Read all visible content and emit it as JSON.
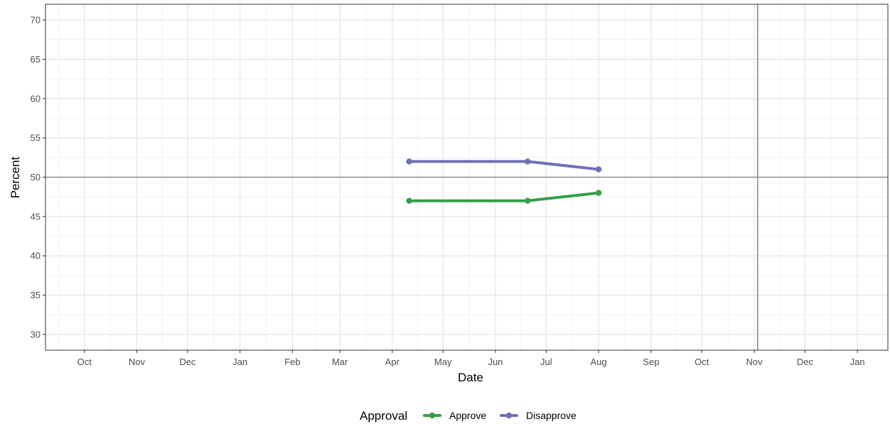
{
  "chart_data": {
    "type": "line",
    "title": "",
    "xlabel": "Date",
    "ylabel": "Percent",
    "x_ticks": [
      "Oct",
      "Nov",
      "Dec",
      "Jan",
      "Feb",
      "Mar",
      "Apr",
      "May",
      "Jun",
      "Jul",
      "Aug",
      "Sep",
      "Oct",
      "Nov",
      "Dec",
      "Jan"
    ],
    "x_tick_dates": [
      "2020-10-01",
      "2020-11-01",
      "2020-12-01",
      "2021-01-01",
      "2021-02-01",
      "2021-03-01",
      "2021-04-01",
      "2021-05-01",
      "2021-06-01",
      "2021-07-01",
      "2021-08-01",
      "2021-09-01",
      "2021-10-01",
      "2021-11-01",
      "2021-12-01",
      "2022-01-01"
    ],
    "xlim": [
      "2020-09-08",
      "2022-01-19"
    ],
    "y_ticks": [
      "30",
      "35",
      "40",
      "45",
      "50",
      "55",
      "60",
      "65",
      "70"
    ],
    "ylim": [
      28,
      72
    ],
    "grid": true,
    "reference_lines": {
      "horizontal_y": 50,
      "vertical_x": "2021-11-03"
    },
    "legend": {
      "title": "Approval",
      "position": "bottom"
    },
    "series": [
      {
        "name": "Approve",
        "color": "#33a048",
        "points": [
          {
            "x": "2021-04-11",
            "y": 47
          },
          {
            "x": "2021-06-20",
            "y": 47
          },
          {
            "x": "2021-08-01",
            "y": 48
          }
        ]
      },
      {
        "name": "Disapprove",
        "color": "#7070b5",
        "points": [
          {
            "x": "2021-04-11",
            "y": 52
          },
          {
            "x": "2021-06-20",
            "y": 52
          },
          {
            "x": "2021-08-01",
            "y": 51
          }
        ]
      }
    ]
  }
}
